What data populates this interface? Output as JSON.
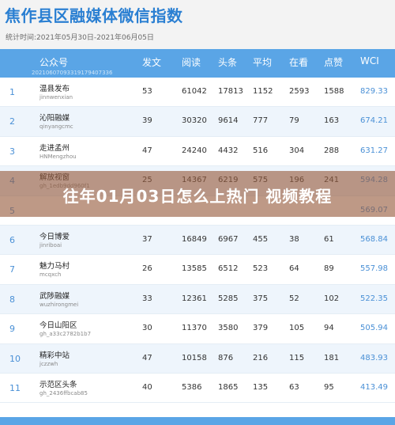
{
  "header": {
    "title": "焦作县区融媒体微信指数",
    "period": "统计时间:2021年05月30日-2021年06月05日"
  },
  "table": {
    "columns": {
      "name": "公众号",
      "posts": "发文",
      "reads": "阅读",
      "top": "头条",
      "avg": "平均",
      "watching": "在看",
      "likes": "点赞",
      "wci": "WCI"
    },
    "header_sub_id": "20210607093319179407336",
    "rows": [
      {
        "rank": "1",
        "name": "温县发布",
        "account": "jinnwenxian",
        "posts": "53",
        "reads": "61042",
        "top": "17813",
        "avg": "1152",
        "watching": "2593",
        "likes": "1588",
        "wci": "829.33"
      },
      {
        "rank": "2",
        "name": "沁阳融媒",
        "account": "qinyangcmc",
        "posts": "39",
        "reads": "30320",
        "top": "9614",
        "avg": "777",
        "watching": "79",
        "likes": "163",
        "wci": "674.21"
      },
      {
        "rank": "3",
        "name": "走进孟州",
        "account": "HNMengzhou",
        "posts": "47",
        "reads": "24240",
        "top": "4432",
        "avg": "516",
        "watching": "304",
        "likes": "288",
        "wci": "631.27"
      },
      {
        "rank": "4",
        "name": "解放视窗",
        "account": "gh_1edb9dd960f1",
        "posts": "25",
        "reads": "14367",
        "top": "6219",
        "avg": "575",
        "watching": "196",
        "likes": "241",
        "wci": "594.28"
      },
      {
        "rank": "5",
        "name": "",
        "account": "",
        "posts": "",
        "reads": "",
        "top": "",
        "avg": "",
        "watching": "",
        "likes": "",
        "wci": "569.07"
      },
      {
        "rank": "6",
        "name": "今日博爱",
        "account": "jinriboai",
        "posts": "37",
        "reads": "16849",
        "top": "6967",
        "avg": "455",
        "watching": "38",
        "likes": "61",
        "wci": "568.84"
      },
      {
        "rank": "7",
        "name": "魅力马村",
        "account": "mcqxch",
        "posts": "26",
        "reads": "13585",
        "top": "6512",
        "avg": "523",
        "watching": "64",
        "likes": "89",
        "wci": "557.98"
      },
      {
        "rank": "8",
        "name": "武陟融媒",
        "account": "wuzhirongmei",
        "posts": "33",
        "reads": "12361",
        "top": "5285",
        "avg": "375",
        "watching": "52",
        "likes": "102",
        "wci": "522.35"
      },
      {
        "rank": "9",
        "name": "今日山阳区",
        "account": "gh_a33c2782b1b7",
        "posts": "30",
        "reads": "11370",
        "top": "3580",
        "avg": "379",
        "watching": "105",
        "likes": "94",
        "wci": "505.94"
      },
      {
        "rank": "10",
        "name": "精彩中站",
        "account": "jczzwh",
        "posts": "47",
        "reads": "10158",
        "top": "876",
        "avg": "216",
        "watching": "115",
        "likes": "181",
        "wci": "483.93"
      },
      {
        "rank": "11",
        "name": "示范区头条",
        "account": "gh_2436ffbcab85",
        "posts": "40",
        "reads": "5386",
        "top": "1865",
        "avg": "135",
        "watching": "63",
        "likes": "95",
        "wci": "413.49"
      }
    ]
  },
  "overlay": {
    "text": "往年01月03日怎么上热门 视频教程"
  }
}
